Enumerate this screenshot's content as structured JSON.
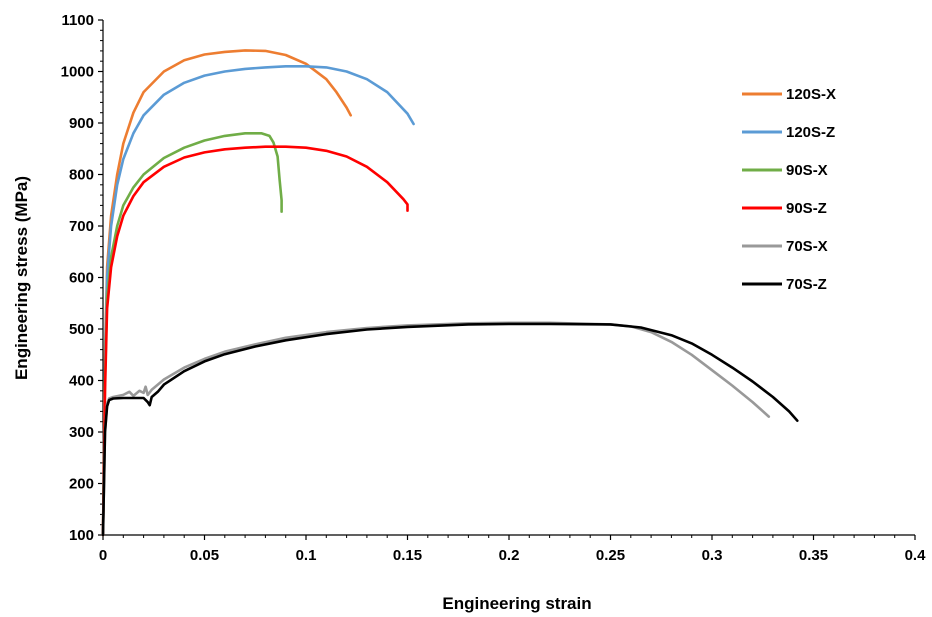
{
  "chart_data": {
    "type": "line",
    "xlabel": "Engineering strain",
    "ylabel": "Engineering stress (MPa)",
    "xlim": [
      0,
      0.4
    ],
    "ylim": [
      100,
      1100
    ],
    "xticks": [
      {
        "v": 0,
        "label": "0"
      },
      {
        "v": 0.05,
        "label": "0.05"
      },
      {
        "v": 0.1,
        "label": "0.1"
      },
      {
        "v": 0.15,
        "label": "0.15"
      },
      {
        "v": 0.2,
        "label": "0.2"
      },
      {
        "v": 0.25,
        "label": "0.25"
      },
      {
        "v": 0.3,
        "label": "0.3"
      },
      {
        "v": 0.35,
        "label": "0.35"
      },
      {
        "v": 0.4,
        "label": "0.4"
      }
    ],
    "yticks": [
      {
        "v": 100,
        "label": "100"
      },
      {
        "v": 200,
        "label": "200"
      },
      {
        "v": 300,
        "label": "300"
      },
      {
        "v": 400,
        "label": "400"
      },
      {
        "v": 500,
        "label": "500"
      },
      {
        "v": 600,
        "label": "600"
      },
      {
        "v": 700,
        "label": "700"
      },
      {
        "v": 800,
        "label": "800"
      },
      {
        "v": 900,
        "label": "900"
      },
      {
        "v": 1000,
        "label": "1000"
      },
      {
        "v": 1100,
        "label": "1100"
      }
    ],
    "grid": false,
    "legend_position": "right",
    "series": [
      {
        "name": "120S-X",
        "color": "#ED7D31",
        "points": [
          [
            0,
            100
          ],
          [
            0.001,
            450
          ],
          [
            0.002,
            620
          ],
          [
            0.004,
            720
          ],
          [
            0.007,
            800
          ],
          [
            0.01,
            860
          ],
          [
            0.015,
            920
          ],
          [
            0.02,
            960
          ],
          [
            0.03,
            1000
          ],
          [
            0.04,
            1022
          ],
          [
            0.05,
            1033
          ],
          [
            0.06,
            1038
          ],
          [
            0.07,
            1041
          ],
          [
            0.08,
            1040
          ],
          [
            0.09,
            1032
          ],
          [
            0.1,
            1015
          ],
          [
            0.11,
            985
          ],
          [
            0.115,
            960
          ],
          [
            0.12,
            930
          ],
          [
            0.122,
            915
          ]
        ]
      },
      {
        "name": "120S-Z",
        "color": "#5B9BD5",
        "points": [
          [
            0,
            100
          ],
          [
            0.001,
            430
          ],
          [
            0.002,
            600
          ],
          [
            0.004,
            700
          ],
          [
            0.007,
            780
          ],
          [
            0.01,
            830
          ],
          [
            0.015,
            880
          ],
          [
            0.02,
            915
          ],
          [
            0.03,
            955
          ],
          [
            0.04,
            978
          ],
          [
            0.05,
            992
          ],
          [
            0.06,
            1000
          ],
          [
            0.07,
            1005
          ],
          [
            0.08,
            1008
          ],
          [
            0.09,
            1010
          ],
          [
            0.1,
            1010
          ],
          [
            0.11,
            1008
          ],
          [
            0.12,
            1000
          ],
          [
            0.13,
            985
          ],
          [
            0.14,
            960
          ],
          [
            0.15,
            918
          ],
          [
            0.153,
            898
          ]
        ]
      },
      {
        "name": "90S-X",
        "color": "#70AD47",
        "points": [
          [
            0,
            100
          ],
          [
            0.001,
            400
          ],
          [
            0.002,
            560
          ],
          [
            0.004,
            640
          ],
          [
            0.007,
            700
          ],
          [
            0.01,
            740
          ],
          [
            0.015,
            775
          ],
          [
            0.02,
            800
          ],
          [
            0.03,
            832
          ],
          [
            0.04,
            852
          ],
          [
            0.05,
            866
          ],
          [
            0.06,
            875
          ],
          [
            0.07,
            880
          ],
          [
            0.078,
            880
          ],
          [
            0.082,
            875
          ],
          [
            0.084,
            862
          ],
          [
            0.086,
            835
          ],
          [
            0.087,
            790
          ],
          [
            0.088,
            750
          ],
          [
            0.088,
            728
          ]
        ]
      },
      {
        "name": "90S-Z",
        "color": "#FF0000",
        "points": [
          [
            0,
            100
          ],
          [
            0.001,
            380
          ],
          [
            0.002,
            540
          ],
          [
            0.004,
            620
          ],
          [
            0.007,
            680
          ],
          [
            0.01,
            720
          ],
          [
            0.015,
            758
          ],
          [
            0.02,
            785
          ],
          [
            0.03,
            815
          ],
          [
            0.04,
            833
          ],
          [
            0.05,
            843
          ],
          [
            0.06,
            849
          ],
          [
            0.07,
            852
          ],
          [
            0.08,
            854
          ],
          [
            0.09,
            854
          ],
          [
            0.1,
            852
          ],
          [
            0.11,
            846
          ],
          [
            0.12,
            835
          ],
          [
            0.13,
            815
          ],
          [
            0.14,
            785
          ],
          [
            0.148,
            752
          ],
          [
            0.15,
            742
          ],
          [
            0.15,
            730
          ]
        ]
      },
      {
        "name": "70S-X",
        "color": "#999999",
        "points": [
          [
            0,
            100
          ],
          [
            0.001,
            300
          ],
          [
            0.002,
            355
          ],
          [
            0.003,
            365
          ],
          [
            0.005,
            368
          ],
          [
            0.01,
            372
          ],
          [
            0.013,
            378
          ],
          [
            0.015,
            370
          ],
          [
            0.018,
            380
          ],
          [
            0.02,
            376
          ],
          [
            0.021,
            388
          ],
          [
            0.022,
            372
          ],
          [
            0.024,
            382
          ],
          [
            0.03,
            402
          ],
          [
            0.04,
            425
          ],
          [
            0.05,
            442
          ],
          [
            0.06,
            456
          ],
          [
            0.075,
            470
          ],
          [
            0.09,
            483
          ],
          [
            0.11,
            494
          ],
          [
            0.13,
            502
          ],
          [
            0.15,
            507
          ],
          [
            0.18,
            511
          ],
          [
            0.2,
            512
          ],
          [
            0.22,
            512
          ],
          [
            0.25,
            509
          ],
          [
            0.26,
            505
          ],
          [
            0.27,
            494
          ],
          [
            0.28,
            475
          ],
          [
            0.29,
            450
          ],
          [
            0.3,
            420
          ],
          [
            0.31,
            390
          ],
          [
            0.32,
            358
          ],
          [
            0.328,
            330
          ]
        ]
      },
      {
        "name": "70S-Z",
        "color": "#000000",
        "points": [
          [
            0,
            100
          ],
          [
            0.001,
            300
          ],
          [
            0.002,
            350
          ],
          [
            0.003,
            362
          ],
          [
            0.005,
            365
          ],
          [
            0.01,
            366
          ],
          [
            0.015,
            366
          ],
          [
            0.02,
            366
          ],
          [
            0.022,
            358
          ],
          [
            0.023,
            352
          ],
          [
            0.024,
            368
          ],
          [
            0.027,
            378
          ],
          [
            0.03,
            392
          ],
          [
            0.04,
            418
          ],
          [
            0.05,
            437
          ],
          [
            0.06,
            451
          ],
          [
            0.075,
            466
          ],
          [
            0.09,
            478
          ],
          [
            0.11,
            490
          ],
          [
            0.13,
            499
          ],
          [
            0.15,
            504
          ],
          [
            0.18,
            509
          ],
          [
            0.2,
            510
          ],
          [
            0.22,
            510
          ],
          [
            0.25,
            509
          ],
          [
            0.265,
            503
          ],
          [
            0.28,
            488
          ],
          [
            0.29,
            472
          ],
          [
            0.3,
            450
          ],
          [
            0.31,
            425
          ],
          [
            0.32,
            398
          ],
          [
            0.33,
            368
          ],
          [
            0.338,
            340
          ],
          [
            0.342,
            322
          ]
        ]
      }
    ]
  }
}
